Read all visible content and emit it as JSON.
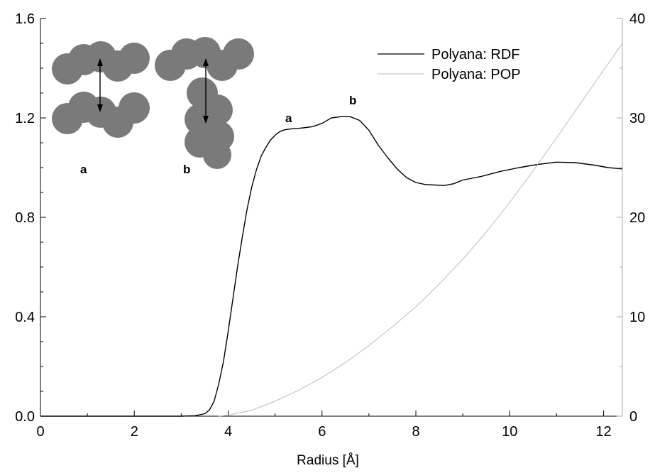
{
  "chart_data": {
    "type": "line",
    "title": "",
    "xlabel": "Radius [Å]",
    "ylabel": "",
    "y2label": "",
    "xlim": [
      0,
      12.4
    ],
    "ylim": [
      0,
      1.6
    ],
    "y2lim": [
      0,
      40
    ],
    "xticks": [
      "0",
      "2",
      "4",
      "6",
      "8",
      "10",
      "12"
    ],
    "yticks": [
      "0.0",
      "0.4",
      "0.8",
      "1.2",
      "1.6"
    ],
    "y2ticks": [
      "0",
      "10",
      "20",
      "30",
      "40"
    ],
    "grid": false,
    "legend_position": "top-right",
    "series": [
      {
        "name": "Polyana: RDF",
        "axis": "left",
        "color": "#000000",
        "x": [
          0,
          1,
          2,
          3,
          3.3,
          3.5,
          3.6,
          3.7,
          3.8,
          3.9,
          4.0,
          4.1,
          4.2,
          4.3,
          4.4,
          4.5,
          4.6,
          4.7,
          4.8,
          4.9,
          5.0,
          5.1,
          5.2,
          5.3,
          5.4,
          5.5,
          5.6,
          5.8,
          6.0,
          6.2,
          6.4,
          6.6,
          6.8,
          7.0,
          7.2,
          7.4,
          7.6,
          7.8,
          8.0,
          8.2,
          8.4,
          8.6,
          8.8,
          9.0,
          9.4,
          9.8,
          10.2,
          10.6,
          11.0,
          11.4,
          11.8,
          12.1,
          12.4
        ],
        "y": [
          0,
          0,
          0,
          0,
          0.002,
          0.01,
          0.025,
          0.06,
          0.13,
          0.22,
          0.34,
          0.47,
          0.6,
          0.72,
          0.83,
          0.92,
          0.99,
          1.045,
          1.08,
          1.11,
          1.13,
          1.145,
          1.152,
          1.155,
          1.157,
          1.158,
          1.16,
          1.165,
          1.178,
          1.2,
          1.205,
          1.205,
          1.19,
          1.15,
          1.09,
          1.04,
          0.995,
          0.96,
          0.94,
          0.932,
          0.93,
          0.928,
          0.935,
          0.95,
          0.965,
          0.985,
          1.0,
          1.013,
          1.022,
          1.02,
          1.01,
          1.0,
          0.995
        ]
      },
      {
        "name": "Polyana: POP",
        "axis": "right",
        "color": "#bbbbbb",
        "x": [
          3.8,
          4.0,
          4.5,
          5.0,
          5.5,
          6.0,
          6.5,
          7.0,
          7.5,
          8.0,
          8.5,
          9.0,
          9.5,
          10.0,
          10.5,
          11.0,
          11.5,
          12.0,
          12.4
        ],
        "y": [
          0,
          0.1,
          0.6,
          1.5,
          2.6,
          3.9,
          5.4,
          7.1,
          9.0,
          11.0,
          13.3,
          15.8,
          18.5,
          21.5,
          24.7,
          28.0,
          31.4,
          34.8,
          37.5
        ]
      }
    ],
    "annotations": {
      "peak_a": "a",
      "peak_b": "b",
      "inset_a": "a",
      "inset_b": "b"
    }
  }
}
